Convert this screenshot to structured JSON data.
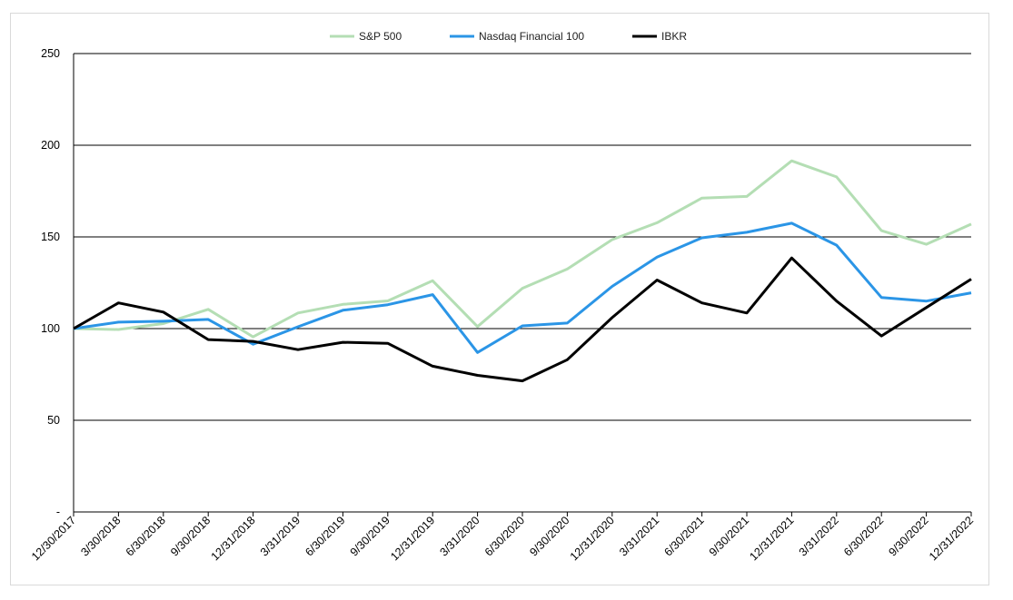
{
  "chart_data": {
    "type": "line",
    "title": "",
    "xlabel": "",
    "ylabel": "",
    "ylim": [
      0,
      250
    ],
    "y_ticks": [
      0,
      50,
      100,
      150,
      200,
      250
    ],
    "y_tick_labels": [
      "-",
      "50",
      "100",
      "150",
      "200",
      "250"
    ],
    "grid": "horizontal",
    "legend_position": "top-center",
    "categories": [
      "12/30/2017",
      "3/30/2018",
      "6/30/2018",
      "9/30/2018",
      "12/31/2018",
      "3/31/2019",
      "6/30/2019",
      "9/30/2019",
      "12/31/2019",
      "3/31/2020",
      "6/30/2020",
      "9/30/2020",
      "12/31/2020",
      "3/31/2021",
      "6/30/2021",
      "9/30/2021",
      "12/31/2021",
      "3/31/2022",
      "6/30/2022",
      "9/30/2022",
      "12/31/2022"
    ],
    "series": [
      {
        "name": "S&P 500",
        "color": "#b4deb4",
        "values": [
          100,
          99.5,
          102.7,
          110.5,
          95.5,
          108.5,
          113.2,
          115.1,
          126.1,
          101.1,
          122.0,
          132.5,
          148.5,
          157.7,
          171.2,
          172.1,
          191.5,
          182.7,
          153.4,
          146.0,
          157.0
        ]
      },
      {
        "name": "Nasdaq Financial 100",
        "color": "#2b95e6",
        "values": [
          100,
          103.5,
          104.0,
          105.0,
          91.5,
          101.0,
          110.0,
          113.0,
          118.5,
          87.0,
          101.5,
          103.0,
          123.0,
          139.0,
          149.5,
          152.5,
          157.5,
          145.5,
          117.0,
          115.0,
          119.5
        ]
      },
      {
        "name": "IBKR",
        "color": "#000000",
        "values": [
          100,
          114.0,
          109.0,
          94.0,
          93.0,
          88.5,
          92.5,
          92.0,
          79.5,
          74.5,
          71.5,
          83.0,
          106.0,
          126.5,
          114.0,
          108.5,
          138.5,
          115.0,
          96.0,
          111.5,
          127.0
        ]
      }
    ]
  }
}
